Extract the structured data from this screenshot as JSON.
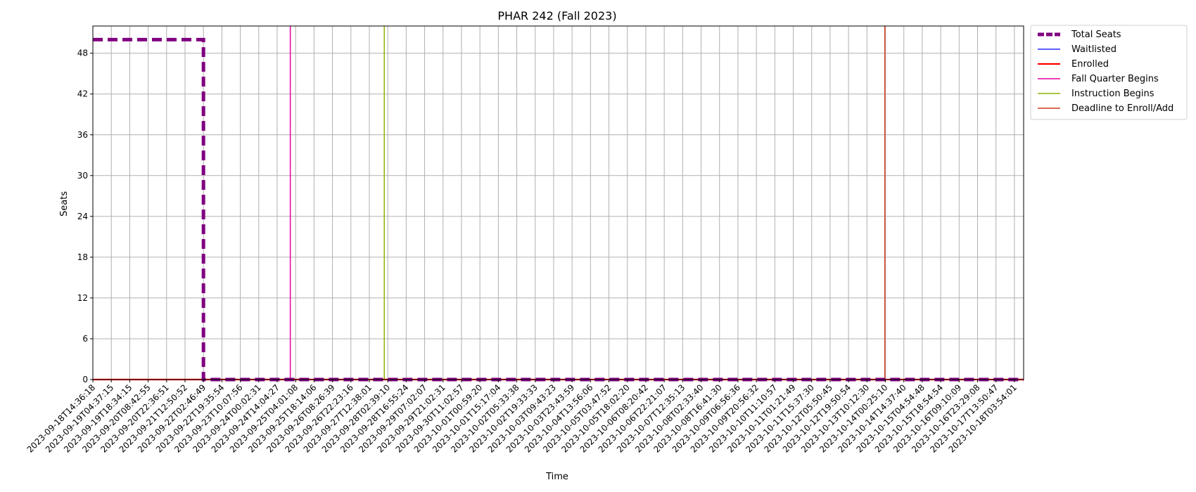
{
  "chart_data": {
    "type": "line",
    "title": "PHAR 242 (Fall 2023)",
    "xlabel": "Time",
    "ylabel": "Seats",
    "ylim": [
      0,
      52
    ],
    "yticks": [
      0,
      6,
      12,
      18,
      24,
      30,
      36,
      42,
      48
    ],
    "grid": true,
    "legend_position": "outside-right-top",
    "x": [
      "2023-09-18T14:36:18",
      "2023-09-19T04:37:15",
      "2023-09-19T18:34:15",
      "2023-09-20T08:42:55",
      "2023-09-20T22:36:51",
      "2023-09-21T12:50:52",
      "2023-09-22T02:46:49",
      "2023-09-22T19:35:54",
      "2023-09-23T10:07:56",
      "2023-09-24T00:02:31",
      "2023-09-24T14:04:27",
      "2023-09-25T04:01:08",
      "2023-09-25T18:14:06",
      "2023-09-26T08:26:39",
      "2023-09-26T22:23:16",
      "2023-09-27T12:38:01",
      "2023-09-28T02:39:10",
      "2023-09-28T16:55:24",
      "2023-09-29T07:02:07",
      "2023-09-29T21:02:31",
      "2023-09-30T11:02:57",
      "2023-10-01T00:59:20",
      "2023-10-01T15:17:04",
      "2023-10-02T05:33:38",
      "2023-10-02T19:33:33",
      "2023-10-03T09:43:23",
      "2023-10-03T23:43:59",
      "2023-10-04T13:56:06",
      "2023-10-05T03:47:52",
      "2023-10-05T18:02:20",
      "2023-10-06T08:20:42",
      "2023-10-06T22:21:07",
      "2023-10-07T12:35:13",
      "2023-10-08T02:33:40",
      "2023-10-08T16:41:30",
      "2023-10-09T06:56:36",
      "2023-10-09T20:56:32",
      "2023-10-10T11:10:57",
      "2023-10-11T01:21:49",
      "2023-10-11T15:37:30",
      "2023-10-12T05:50:45",
      "2023-10-12T19:50:54",
      "2023-10-13T10:12:30",
      "2023-10-14T00:25:10",
      "2023-10-14T14:37:40",
      "2023-10-15T04:54:48",
      "2023-10-15T18:54:54",
      "2023-10-16T09:10:09",
      "2023-10-16T23:29:08",
      "2023-10-17T13:50:47",
      "2023-10-18T03:54:01"
    ],
    "series": [
      {
        "name": "Total Seats",
        "color": "#800080",
        "style": "dashed-thick",
        "values": [
          50,
          50,
          50,
          50,
          50,
          50,
          0,
          0,
          0,
          0,
          0,
          0,
          0,
          0,
          0,
          0,
          0,
          0,
          0,
          0,
          0,
          0,
          0,
          0,
          0,
          0,
          0,
          0,
          0,
          0,
          0,
          0,
          0,
          0,
          0,
          0,
          0,
          0,
          0,
          0,
          0,
          0,
          0,
          0,
          0,
          0,
          0,
          0,
          0,
          0,
          0
        ]
      },
      {
        "name": "Waitlisted",
        "color": "#0000ff",
        "style": "solid-thin",
        "values": [
          0,
          0,
          0,
          0,
          0,
          0,
          0,
          0,
          0,
          0,
          0,
          0,
          0,
          0,
          0,
          0,
          0,
          0,
          0,
          0,
          0,
          0,
          0,
          0,
          0,
          0,
          0,
          0,
          0,
          0,
          0,
          0,
          0,
          0,
          0,
          0,
          0,
          0,
          0,
          0,
          0,
          0,
          0,
          0,
          0,
          0,
          0,
          0,
          0,
          0,
          0
        ]
      },
      {
        "name": "Enrolled",
        "color": "#ff0000",
        "style": "solid-thick",
        "values": [
          0,
          0,
          0,
          0,
          0,
          0,
          0,
          0,
          0,
          0,
          0,
          0,
          0,
          0,
          0,
          0,
          0,
          0,
          0,
          0,
          0,
          0,
          0,
          0,
          0,
          0,
          0,
          0,
          0,
          0,
          0,
          0,
          0,
          0,
          0,
          0,
          0,
          0,
          0,
          0,
          0,
          0,
          0,
          0,
          0,
          0,
          0,
          0,
          0,
          0,
          0
        ]
      }
    ],
    "vlines": [
      {
        "name": "Fall Quarter Begins",
        "color": "#e6009a",
        "x": "2023-09-25T00:00:00"
      },
      {
        "name": "Instruction Begins",
        "color": "#8db600",
        "x": "2023-09-28T00:00:00"
      },
      {
        "name": "Deadline to Enroll/Add",
        "color": "#d2381a",
        "x": "2023-10-14T00:00:00"
      }
    ]
  }
}
